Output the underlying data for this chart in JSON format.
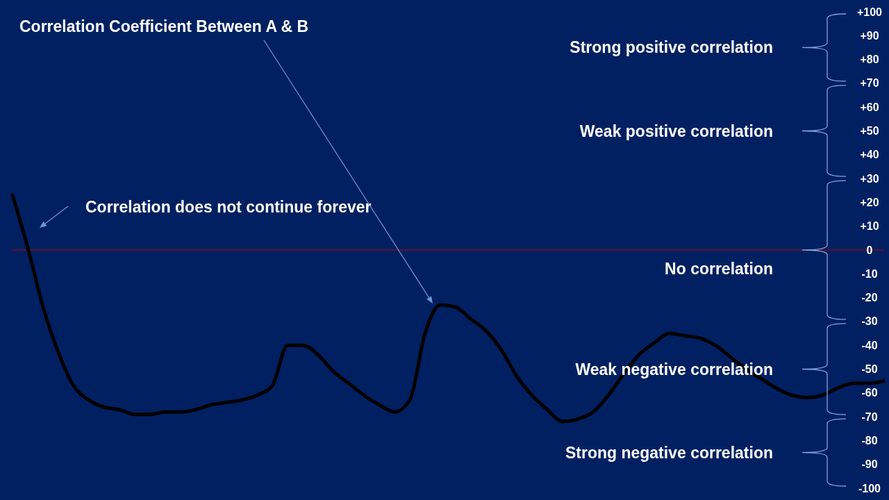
{
  "chart_data": {
    "type": "line",
    "title": "Correlation Coefficient Between A & B",
    "annotations": [
      "Correlation does not continue forever",
      "Strong positive correlation",
      "Weak positive correlation",
      "No correlation",
      "Weak negative correlation",
      "Strong negative correlation"
    ],
    "categories": [
      null,
      null,
      null,
      null,
      null,
      null,
      null,
      null,
      null,
      null,
      null,
      null,
      null,
      null,
      null,
      null,
      null,
      null,
      null,
      null,
      null,
      null,
      null,
      null,
      null,
      null,
      null,
      null,
      null,
      null,
      null,
      null,
      null,
      null,
      null,
      null,
      null,
      null,
      null,
      null,
      null,
      null,
      null,
      null,
      null,
      null,
      null,
      null,
      null,
      null,
      null,
      null,
      null,
      null,
      null,
      null,
      null,
      null
    ],
    "series": [
      {
        "color": "#000000",
        "values": [
          23,
          1,
          -24,
          -43,
          -57,
          -63,
          -66,
          -67,
          -69,
          -69,
          -68,
          -68,
          -67,
          -65,
          -64,
          -63,
          -61,
          -57,
          -40,
          -40,
          -44,
          -51,
          -56,
          -61,
          -65,
          -68,
          -63,
          -35,
          -23,
          -24,
          -29,
          -34,
          -42,
          -53,
          -61,
          -67,
          -72,
          -71,
          -68,
          -61,
          -52,
          -44,
          -39,
          -35,
          -36,
          -37,
          -40,
          -45,
          -50,
          -54,
          -58,
          -61,
          -62,
          -61,
          -58,
          -56,
          -56,
          -55
        ]
      }
    ],
    "ylim": [
      -100,
      100
    ],
    "yticks": [
      {
        "value": 100,
        "label": "+100"
      },
      {
        "value": 90,
        "label": "+90"
      },
      {
        "value": 80,
        "label": "+80"
      },
      {
        "value": 70,
        "label": "+70"
      },
      {
        "value": 60,
        "label": "+60"
      },
      {
        "value": 50,
        "label": "+50"
      },
      {
        "value": 40,
        "label": "+40"
      },
      {
        "value": 30,
        "label": "+30"
      },
      {
        "value": 20,
        "label": "+20"
      },
      {
        "value": 10,
        "label": "+10"
      },
      0,
      -10,
      -20,
      -30,
      -40,
      -50,
      -60,
      -70,
      -80,
      -90,
      -100
    ],
    "tick_labels": "y",
    "ref_lines": [
      {
        "axis": "y",
        "value": 0,
        "color": "#c00000"
      }
    ]
  }
}
